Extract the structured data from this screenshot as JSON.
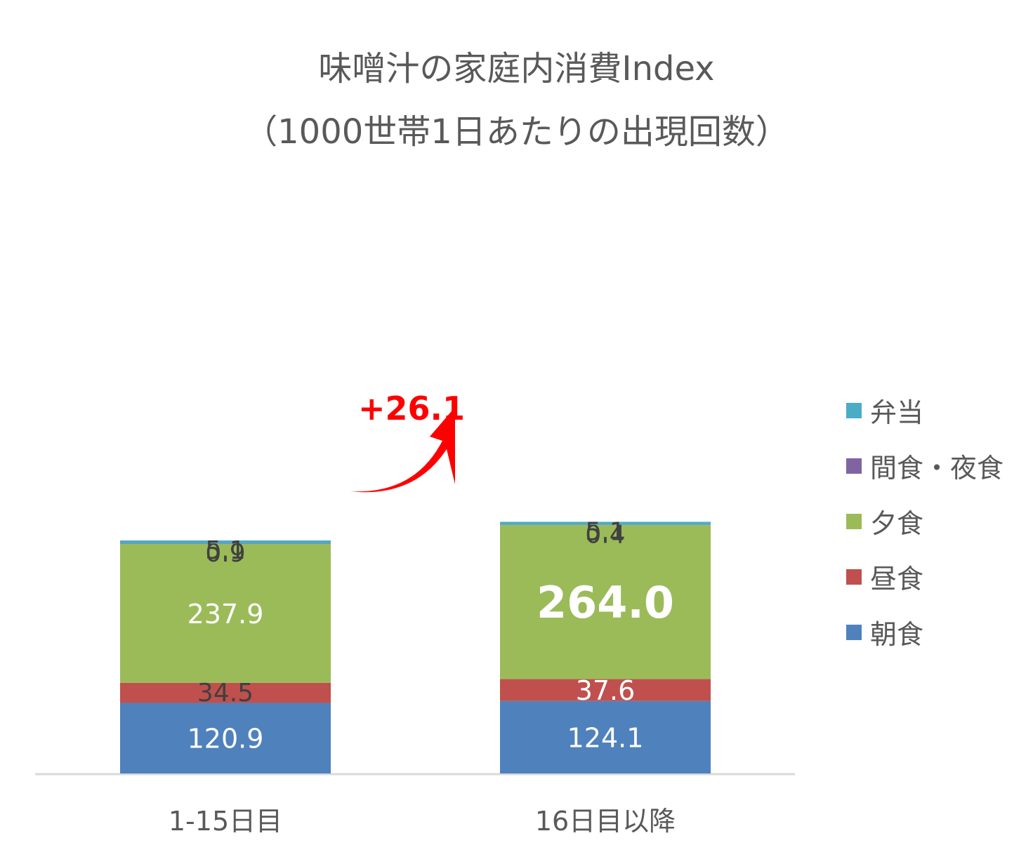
{
  "chart_data": {
    "type": "bar",
    "stacked": true,
    "title": "味噌汁の家庭内消費Index",
    "subtitle": "（1000世帯1日あたりの出現回数）",
    "categories": [
      "1-15日目",
      "16日目以降"
    ],
    "series": [
      {
        "name": "朝食",
        "values": [
          120.9,
          124.1
        ],
        "color": "#4f81bd"
      },
      {
        "name": "昼食",
        "values": [
          34.5,
          37.6
        ],
        "color": "#c0504d"
      },
      {
        "name": "夕食",
        "values": [
          237.9,
          264.0
        ],
        "color": "#9bbb59"
      },
      {
        "name": "間食・夜食",
        "values": [
          0.9,
          0.4
        ],
        "color": "#8064a2"
      },
      {
        "name": "弁当",
        "values": [
          5.1,
          5.1
        ],
        "color": "#4bacc6"
      }
    ],
    "legend": "right",
    "grid": false,
    "annotation": "+26.1",
    "annotation_color": "#ff0000"
  },
  "legend_order": [
    "弁当",
    "間食・夜食",
    "夕食",
    "昼食",
    "朝食"
  ]
}
